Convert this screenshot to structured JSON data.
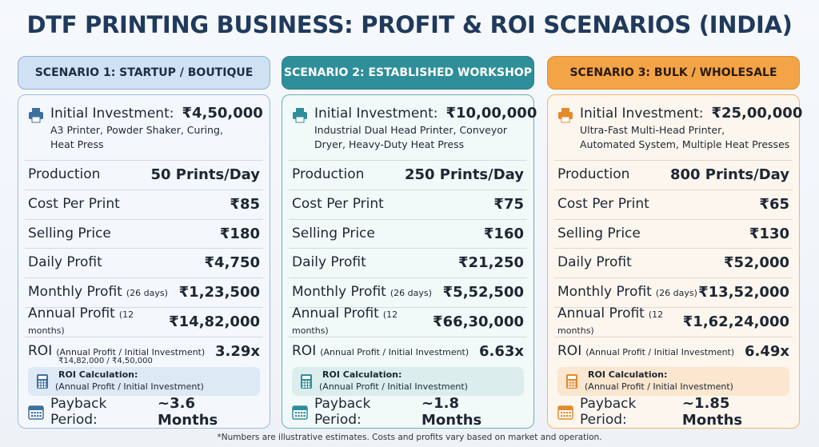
{
  "header": {
    "title": "DTF PRINTING BUSINESS: PROFIT & ROI SCENARIOS (INDIA)"
  },
  "scenarios": [
    {
      "name": "SCENARIO 1: STARTUP / BOUTIQUE",
      "investment_label": "Initial Investment:",
      "investment": "₹4,50,000",
      "description": [
        "A3 Printer, Powder Shaker, Curing,",
        "Heat Press"
      ],
      "rows": [
        {
          "label": "Production",
          "value": "50 Prints/Day"
        },
        {
          "label": "Cost Per Print",
          "value": "₹85"
        },
        {
          "label": "Selling Price",
          "value": "₹180"
        },
        {
          "label": "Daily Profit",
          "value": "₹4,750"
        },
        {
          "label": "Monthly Profit",
          "note": "(26 days)",
          "value": "₹1,23,500"
        },
        {
          "label": "Annual Profit",
          "note": "(12 months)",
          "value": "₹14,82,000"
        }
      ],
      "roi_label": "ROI",
      "roi_note": "(Annual Profit / Initial Investment)",
      "roi_detail": "₹14,82,000 / ₹4,50,000",
      "roi": "3.29x",
      "calc_title": "ROI Calculation:",
      "calc_text": "(Annual Profit / Initial Investment)",
      "payback_label": "Payback Period:",
      "payback": "~3.6 Months"
    },
    {
      "name": "SCENARIO 2: ESTABLISHED WORKSHOP",
      "investment_label": "Initial Investment:",
      "investment": "₹10,00,000",
      "description": [
        "Industrial Dual Head Printer, Conveyor",
        "Dryer, Heavy-Duty Heat Press"
      ],
      "rows": [
        {
          "label": "Production",
          "value": "250 Prints/Day"
        },
        {
          "label": "Cost Per Print",
          "value": "₹75"
        },
        {
          "label": "Selling Price",
          "value": "₹160"
        },
        {
          "label": "Daily Profit",
          "value": "₹21,250"
        },
        {
          "label": "Monthly Profit",
          "note": "(26 days)",
          "value": "₹5,52,500"
        },
        {
          "label": "Annual Profit",
          "note": "(12 months)",
          "value": "₹66,30,000"
        }
      ],
      "roi_label": "ROI",
      "roi_note": "(Annual Profit / Initial Investment)",
      "roi": "6.63x",
      "calc_title": "ROI Calculation:",
      "calc_text": "(Annual Profit / Initial Investment)",
      "payback_label": "Payback Period:",
      "payback": "~1.8 Months"
    },
    {
      "name": "SCENARIO 3: BULK / WHOLESALE",
      "investment_label": "Initial Investment:",
      "investment": "₹25,00,000",
      "description": [
        "Ultra-Fast Multi-Head Printer,",
        "Automated System, Multiple Heat Presses"
      ],
      "rows": [
        {
          "label": "Production",
          "value": "800 Prints/Day"
        },
        {
          "label": "Cost Per Print",
          "value": "₹65"
        },
        {
          "label": "Selling Price",
          "value": "₹130"
        },
        {
          "label": "Daily Profit",
          "value": "₹52,000"
        },
        {
          "label": "Monthly Profit",
          "note": "(26 days)",
          "value": "₹13,52,000"
        },
        {
          "label": "Annual Profit",
          "note": "(12 months)",
          "value": "₹1,62,24,000"
        }
      ],
      "roi_label": "ROI",
      "roi_note": "(Annual Profit / Initial Investment)",
      "roi": "6.49x",
      "calc_title": "ROI Calculation:",
      "calc_text": "(Annual Profit / Initial Investment)",
      "payback_label": "Payback Period:",
      "payback": "~1.85 Months"
    }
  ],
  "footnote": "*Numbers are illustrative estimates. Costs and profits vary based on market and operation."
}
